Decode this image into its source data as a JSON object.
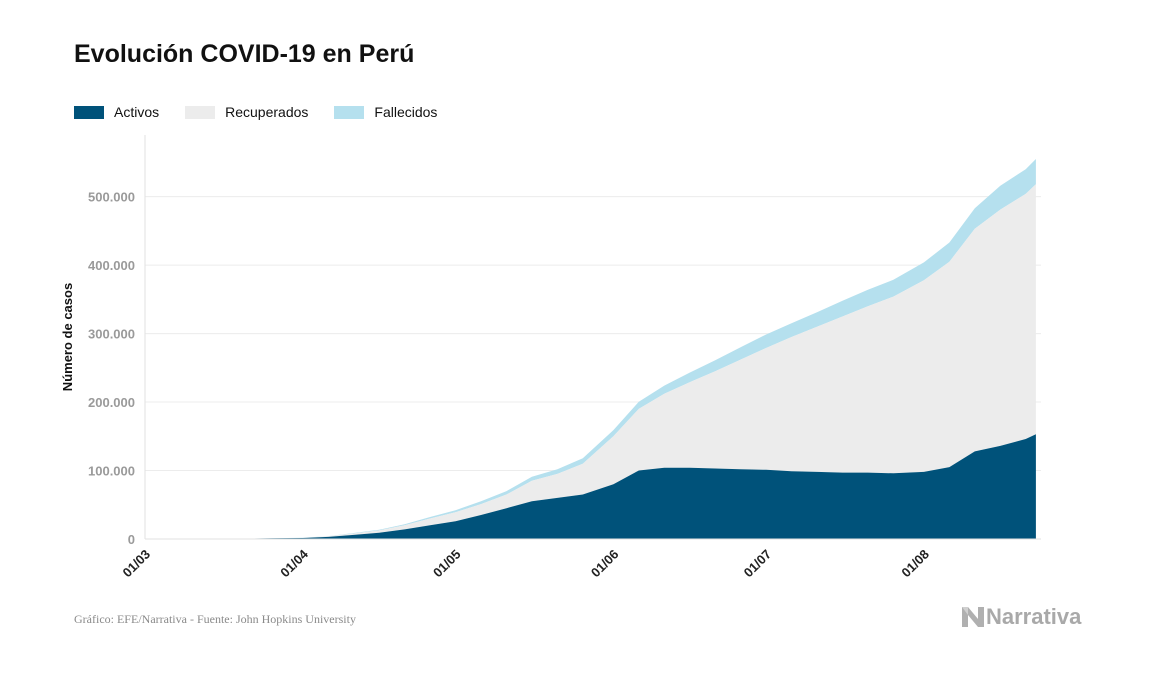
{
  "chart_data": {
    "type": "area",
    "title": "Evolución COVID-19 en Perú",
    "ylabel": "Número de casos",
    "xlabel": "",
    "ylim": [
      0,
      590000
    ],
    "y_ticks": [
      {
        "value": 0,
        "label": "0"
      },
      {
        "value": 100000,
        "label": "100.000"
      },
      {
        "value": 200000,
        "label": "200.000"
      },
      {
        "value": 300000,
        "label": "300.000"
      },
      {
        "value": 400000,
        "label": "400.000"
      },
      {
        "value": 500000,
        "label": "500.000"
      }
    ],
    "x_ticks": [
      {
        "date": "2020-03-01",
        "label": "01/03"
      },
      {
        "date": "2020-04-01",
        "label": "01/04"
      },
      {
        "date": "2020-05-01",
        "label": "01/05"
      },
      {
        "date": "2020-06-01",
        "label": "01/06"
      },
      {
        "date": "2020-07-01",
        "label": "01/07"
      },
      {
        "date": "2020-08-01",
        "label": "01/08"
      }
    ],
    "x_start": "2020-03-01",
    "x_end": "2020-08-24",
    "stacked": true,
    "legend_position": "top-left",
    "grid": "horizontal",
    "dates": [
      "2020-03-06",
      "2020-03-16",
      "2020-03-26",
      "2020-04-01",
      "2020-04-06",
      "2020-04-11",
      "2020-04-16",
      "2020-04-21",
      "2020-04-26",
      "2020-05-01",
      "2020-05-06",
      "2020-05-11",
      "2020-05-16",
      "2020-05-21",
      "2020-05-26",
      "2020-06-01",
      "2020-06-06",
      "2020-06-11",
      "2020-06-16",
      "2020-06-21",
      "2020-06-26",
      "2020-07-01",
      "2020-07-06",
      "2020-07-11",
      "2020-07-16",
      "2020-07-21",
      "2020-07-26",
      "2020-08-01",
      "2020-08-06",
      "2020-08-11",
      "2020-08-16",
      "2020-08-21",
      "2020-08-23"
    ],
    "series": [
      {
        "name": "Activos",
        "color": "#00527a",
        "values": [
          0,
          200,
          1000,
          1500,
          3000,
          6000,
          9000,
          14000,
          20000,
          26000,
          35000,
          45000,
          55000,
          60000,
          65000,
          80000,
          100000,
          104000,
          104000,
          103000,
          102000,
          101000,
          99000,
          98000,
          97000,
          97000,
          96000,
          98000,
          105000,
          128000,
          136000,
          146000,
          153000
        ]
      },
      {
        "name": "Recuperados",
        "color": "#ececec",
        "values": [
          0,
          0,
          0,
          0,
          900,
          2000,
          3500,
          6000,
          10000,
          13000,
          16000,
          20000,
          30000,
          35000,
          45000,
          70000,
          90000,
          108000,
          125000,
          142000,
          160000,
          178000,
          196000,
          212000,
          228000,
          243000,
          258000,
          280000,
          300000,
          325000,
          345000,
          358000,
          365000
        ]
      },
      {
        "name": "Fallecidos",
        "color": "#b5e0ee",
        "values": [
          0,
          0,
          100,
          200,
          400,
          700,
          1100,
          1500,
          2200,
          3000,
          4000,
          5000,
          6000,
          7000,
          8000,
          9000,
          10500,
          12000,
          14000,
          16000,
          18000,
          19600,
          20000,
          21000,
          23000,
          24000,
          24500,
          26000,
          28000,
          30000,
          35000,
          36000,
          37000
        ]
      }
    ]
  },
  "footer": {
    "source": "Gráfico: EFE/Narrativa - Fuente: John Hopkins University",
    "brand": "Narrativa"
  }
}
